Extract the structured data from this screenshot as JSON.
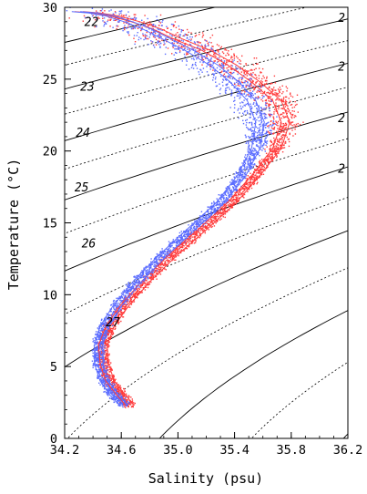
{
  "chart_data": {
    "type": "scatter",
    "xlabel": "Salinity (psu)",
    "ylabel": "Temperature (°C)",
    "xlim": [
      34.2,
      36.2
    ],
    "ylim": [
      0,
      30
    ],
    "x_ticks": [
      "34.2",
      "34.6",
      "35.0",
      "35.4",
      "35.8",
      "36.2"
    ],
    "y_ticks": [
      "0",
      "5",
      "10",
      "15",
      "20",
      "25",
      "30"
    ],
    "isopycnals": {
      "solid_levels": [
        22,
        23,
        24,
        25,
        26,
        27,
        28,
        29
      ],
      "dotted_levels": [
        22.5,
        23.5,
        24.5,
        25.5,
        26.5,
        27.5,
        28.5
      ],
      "labels": [
        {
          "text": "22",
          "s": 34.39,
          "t": 28.7
        },
        {
          "text": "23",
          "s": 34.36,
          "t": 24.2
        },
        {
          "text": "24",
          "s": 34.33,
          "t": 21.0
        },
        {
          "text": "25",
          "s": 34.32,
          "t": 17.2
        },
        {
          "text": "26",
          "s": 34.37,
          "t": 13.3
        },
        {
          "text": "27",
          "s": 34.54,
          "t": 7.8
        },
        {
          "text": "2",
          "s": 36.18,
          "t": 29.0
        },
        {
          "text": "2",
          "s": 36.18,
          "t": 25.6
        },
        {
          "text": "2",
          "s": 36.18,
          "t": 22.0
        },
        {
          "text": "2",
          "s": 36.18,
          "t": 18.5
        }
      ]
    },
    "series": [
      {
        "color": "#ff3b3b",
        "profile_S": [
          34.66,
          34.6,
          34.52,
          34.48,
          34.47,
          34.52,
          34.62,
          34.78,
          34.97,
          35.18,
          35.38,
          35.55,
          35.7,
          35.76,
          35.7,
          35.55,
          35.38,
          35.2,
          35.0,
          34.85,
          34.7,
          34.55,
          34.42,
          34.3
        ],
        "profile_T": [
          2.3,
          3.0,
          4.0,
          5.2,
          6.5,
          7.8,
          9.2,
          11.0,
          12.8,
          14.6,
          16.4,
          18.3,
          20.2,
          22.0,
          23.5,
          24.8,
          26.0,
          27.0,
          27.8,
          28.5,
          29.0,
          29.4,
          29.6,
          29.7
        ]
      },
      {
        "color": "#5a6cff",
        "profile_S": [
          34.62,
          34.55,
          34.48,
          34.44,
          34.44,
          34.48,
          34.57,
          34.72,
          34.9,
          35.1,
          35.3,
          35.45,
          35.55,
          35.58,
          35.52,
          35.4,
          35.25,
          35.08,
          34.92,
          34.78,
          34.65,
          34.52,
          34.4,
          34.28
        ],
        "profile_T": [
          2.3,
          3.0,
          4.0,
          5.2,
          6.5,
          7.8,
          9.2,
          11.0,
          12.8,
          14.6,
          16.4,
          18.3,
          20.2,
          22.0,
          23.5,
          24.8,
          26.0,
          27.0,
          27.8,
          28.5,
          29.0,
          29.4,
          29.6,
          29.7
        ]
      }
    ],
    "grid": false
  }
}
